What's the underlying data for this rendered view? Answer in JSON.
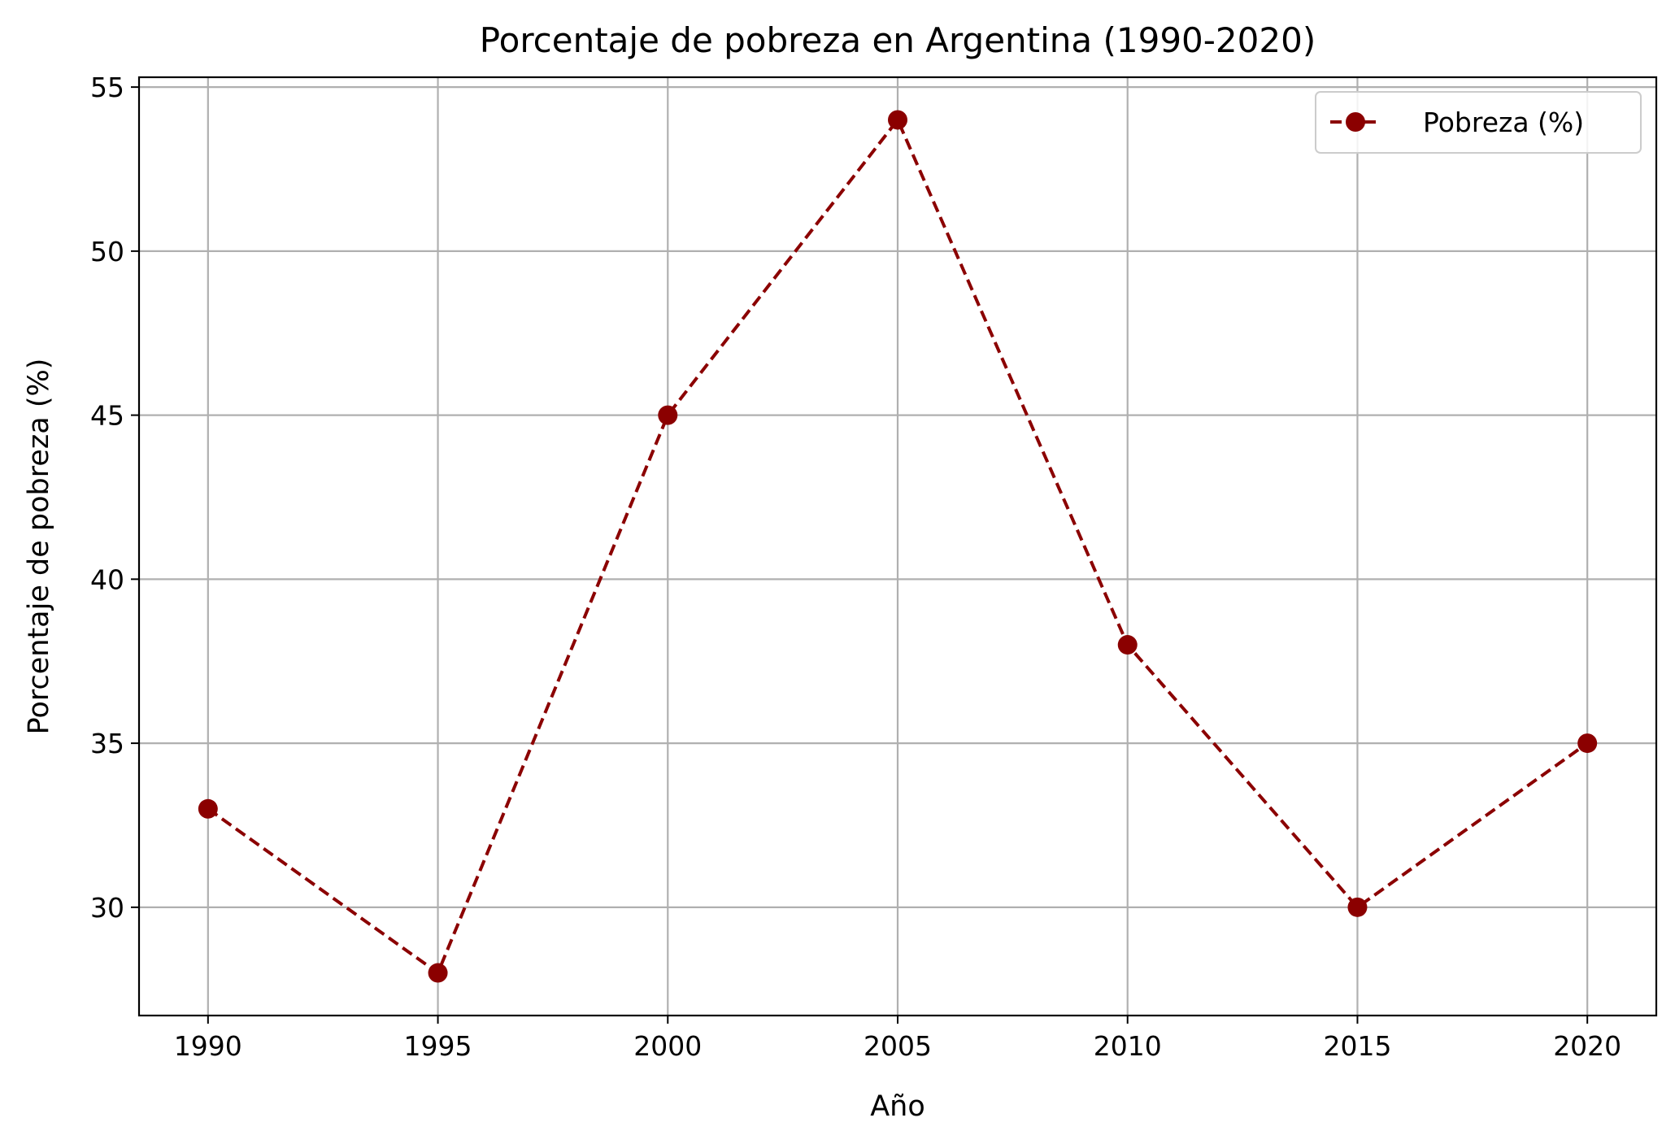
{
  "chart_data": {
    "type": "line",
    "title": "Porcentaje de pobreza en Argentina (1990-2020)",
    "xlabel": "Año",
    "ylabel": "Porcentaje de pobreza (%)",
    "x": [
      1990,
      1995,
      2000,
      2005,
      2010,
      2015,
      2020
    ],
    "x_ticks": [
      "1990",
      "1995",
      "2000",
      "2005",
      "2010",
      "2015",
      "2020"
    ],
    "y_ticks": [
      "30",
      "35",
      "40",
      "45",
      "50",
      "55"
    ],
    "xlim": [
      1988.5,
      2021.5
    ],
    "ylim": [
      26.7,
      55.3
    ],
    "grid": true,
    "legend_position": "top-right",
    "series": [
      {
        "name": "Pobreza (%)",
        "values": [
          33,
          28,
          45,
          54,
          38,
          30,
          35
        ],
        "color": "#8b0000",
        "line_style": "dashed",
        "marker": "circle"
      }
    ]
  }
}
